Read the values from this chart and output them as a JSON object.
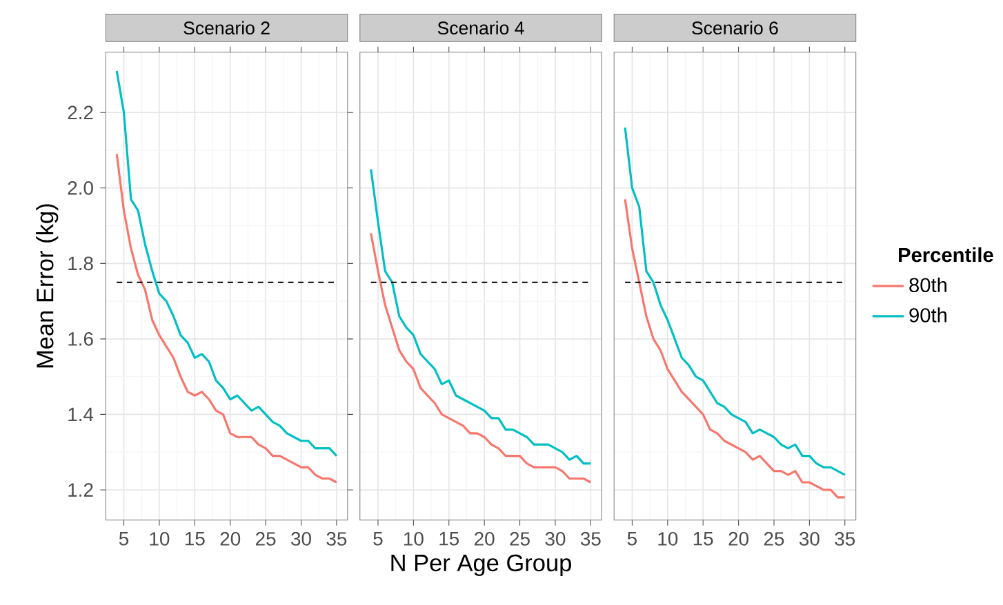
{
  "chart_data": [
    {
      "type": "line",
      "title": "Scenario 2",
      "ylabel": "Mean Error (kg)",
      "xlim": [
        2.45,
        36.55
      ],
      "ylim": [
        1.12,
        2.36
      ],
      "xticks": [
        5,
        10,
        15,
        20,
        25,
        30,
        35
      ],
      "yticks": [
        {
          "value": 1.2,
          "label": "1.2"
        },
        {
          "value": 1.4,
          "label": "1.4"
        },
        {
          "value": 1.6,
          "label": "1.6"
        },
        {
          "value": 1.8,
          "label": "1.8"
        },
        {
          "value": 2.0,
          "label": "2.0"
        },
        {
          "value": 2.2,
          "label": "2.2"
        }
      ],
      "grid": true,
      "line_style": "solid",
      "ref_lines": [
        {
          "axis": "y",
          "value": 1.75,
          "color": "#000000",
          "line_style": "dashed"
        }
      ],
      "x": [
        4,
        5,
        6,
        7,
        8,
        9,
        10,
        11,
        12,
        13,
        14,
        15,
        16,
        17,
        18,
        19,
        20,
        21,
        22,
        23,
        24,
        25,
        26,
        27,
        28,
        29,
        30,
        31,
        32,
        33,
        34,
        35
      ],
      "series": [
        {
          "color": "#f8766d",
          "values": [
            2.09,
            1.94,
            1.84,
            1.77,
            1.73,
            1.65,
            1.61,
            1.58,
            1.55,
            1.5,
            1.46,
            1.45,
            1.46,
            1.44,
            1.41,
            1.4,
            1.35,
            1.34,
            1.34,
            1.34,
            1.32,
            1.31,
            1.29,
            1.29,
            1.28,
            1.27,
            1.26,
            1.26,
            1.24,
            1.23,
            1.23,
            1.22
          ]
        },
        {
          "color": "#00bfc4",
          "values": [
            2.31,
            2.2,
            1.97,
            1.94,
            1.85,
            1.78,
            1.72,
            1.7,
            1.66,
            1.61,
            1.59,
            1.55,
            1.56,
            1.54,
            1.49,
            1.47,
            1.44,
            1.45,
            1.43,
            1.41,
            1.42,
            1.4,
            1.38,
            1.37,
            1.35,
            1.34,
            1.33,
            1.33,
            1.31,
            1.31,
            1.31,
            1.29
          ]
        }
      ]
    },
    {
      "type": "line",
      "title": "Scenario 4",
      "xlabel": "N Per Age Group",
      "xlim": [
        2.45,
        36.55
      ],
      "ylim": [
        1.12,
        2.36
      ],
      "xticks": [
        5,
        10,
        15,
        20,
        25,
        30,
        35
      ],
      "yticks": [
        {
          "value": 1.2,
          "label": null
        },
        {
          "value": 1.4,
          "label": null
        },
        {
          "value": 1.6,
          "label": null
        },
        {
          "value": 1.8,
          "label": null
        },
        {
          "value": 2.0,
          "label": null
        },
        {
          "value": 2.2,
          "label": null
        }
      ],
      "tick_labels": "x",
      "grid": true,
      "line_style": "solid",
      "ref_lines": [
        {
          "axis": "y",
          "value": 1.75,
          "color": "#000000",
          "line_style": "dashed"
        }
      ],
      "x": [
        4,
        5,
        6,
        7,
        8,
        9,
        10,
        11,
        12,
        13,
        14,
        15,
        16,
        17,
        18,
        19,
        20,
        21,
        22,
        23,
        24,
        25,
        26,
        27,
        28,
        29,
        30,
        31,
        32,
        33,
        34,
        35
      ],
      "series": [
        {
          "color": "#f8766d",
          "values": [
            1.88,
            1.78,
            1.69,
            1.63,
            1.57,
            1.54,
            1.52,
            1.47,
            1.45,
            1.43,
            1.4,
            1.39,
            1.38,
            1.37,
            1.35,
            1.35,
            1.34,
            1.32,
            1.31,
            1.29,
            1.29,
            1.29,
            1.27,
            1.26,
            1.26,
            1.26,
            1.26,
            1.25,
            1.23,
            1.23,
            1.23,
            1.22
          ]
        },
        {
          "color": "#00bfc4",
          "values": [
            2.05,
            1.91,
            1.78,
            1.75,
            1.66,
            1.63,
            1.61,
            1.56,
            1.54,
            1.52,
            1.48,
            1.49,
            1.45,
            1.44,
            1.43,
            1.42,
            1.41,
            1.39,
            1.39,
            1.36,
            1.36,
            1.35,
            1.34,
            1.32,
            1.32,
            1.32,
            1.31,
            1.3,
            1.28,
            1.29,
            1.27,
            1.27
          ]
        }
      ]
    },
    {
      "type": "line",
      "title": "Scenario 6",
      "legend_title": "Percentile",
      "legend": "right",
      "xlim": [
        2.45,
        36.55
      ],
      "ylim": [
        1.12,
        2.36
      ],
      "xticks": [
        5,
        10,
        15,
        20,
        25,
        30,
        35
      ],
      "yticks": [
        {
          "value": 1.2,
          "label": null
        },
        {
          "value": 1.4,
          "label": null
        },
        {
          "value": 1.6,
          "label": null
        },
        {
          "value": 1.8,
          "label": null
        },
        {
          "value": 2.0,
          "label": null
        },
        {
          "value": 2.2,
          "label": null
        }
      ],
      "tick_labels": "x",
      "grid": true,
      "line_style": "solid",
      "ref_lines": [
        {
          "axis": "y",
          "value": 1.75,
          "color": "#000000",
          "line_style": "dashed"
        }
      ],
      "x": [
        4,
        5,
        6,
        7,
        8,
        9,
        10,
        11,
        12,
        13,
        14,
        15,
        16,
        17,
        18,
        19,
        20,
        21,
        22,
        23,
        24,
        25,
        26,
        27,
        28,
        29,
        30,
        31,
        32,
        33,
        34,
        35
      ],
      "series": [
        {
          "name": "80th",
          "color": "#f8766d",
          "values": [
            1.97,
            1.84,
            1.75,
            1.66,
            1.6,
            1.57,
            1.52,
            1.49,
            1.46,
            1.44,
            1.42,
            1.4,
            1.36,
            1.35,
            1.33,
            1.32,
            1.31,
            1.3,
            1.28,
            1.29,
            1.27,
            1.25,
            1.25,
            1.24,
            1.25,
            1.22,
            1.22,
            1.21,
            1.2,
            1.2,
            1.18,
            1.18
          ]
        },
        {
          "name": "90th",
          "color": "#00bfc4",
          "values": [
            2.16,
            2.0,
            1.95,
            1.78,
            1.75,
            1.69,
            1.65,
            1.6,
            1.55,
            1.53,
            1.5,
            1.49,
            1.46,
            1.43,
            1.42,
            1.4,
            1.39,
            1.38,
            1.35,
            1.36,
            1.35,
            1.34,
            1.32,
            1.31,
            1.32,
            1.29,
            1.29,
            1.27,
            1.26,
            1.26,
            1.25,
            1.24
          ]
        }
      ]
    }
  ]
}
